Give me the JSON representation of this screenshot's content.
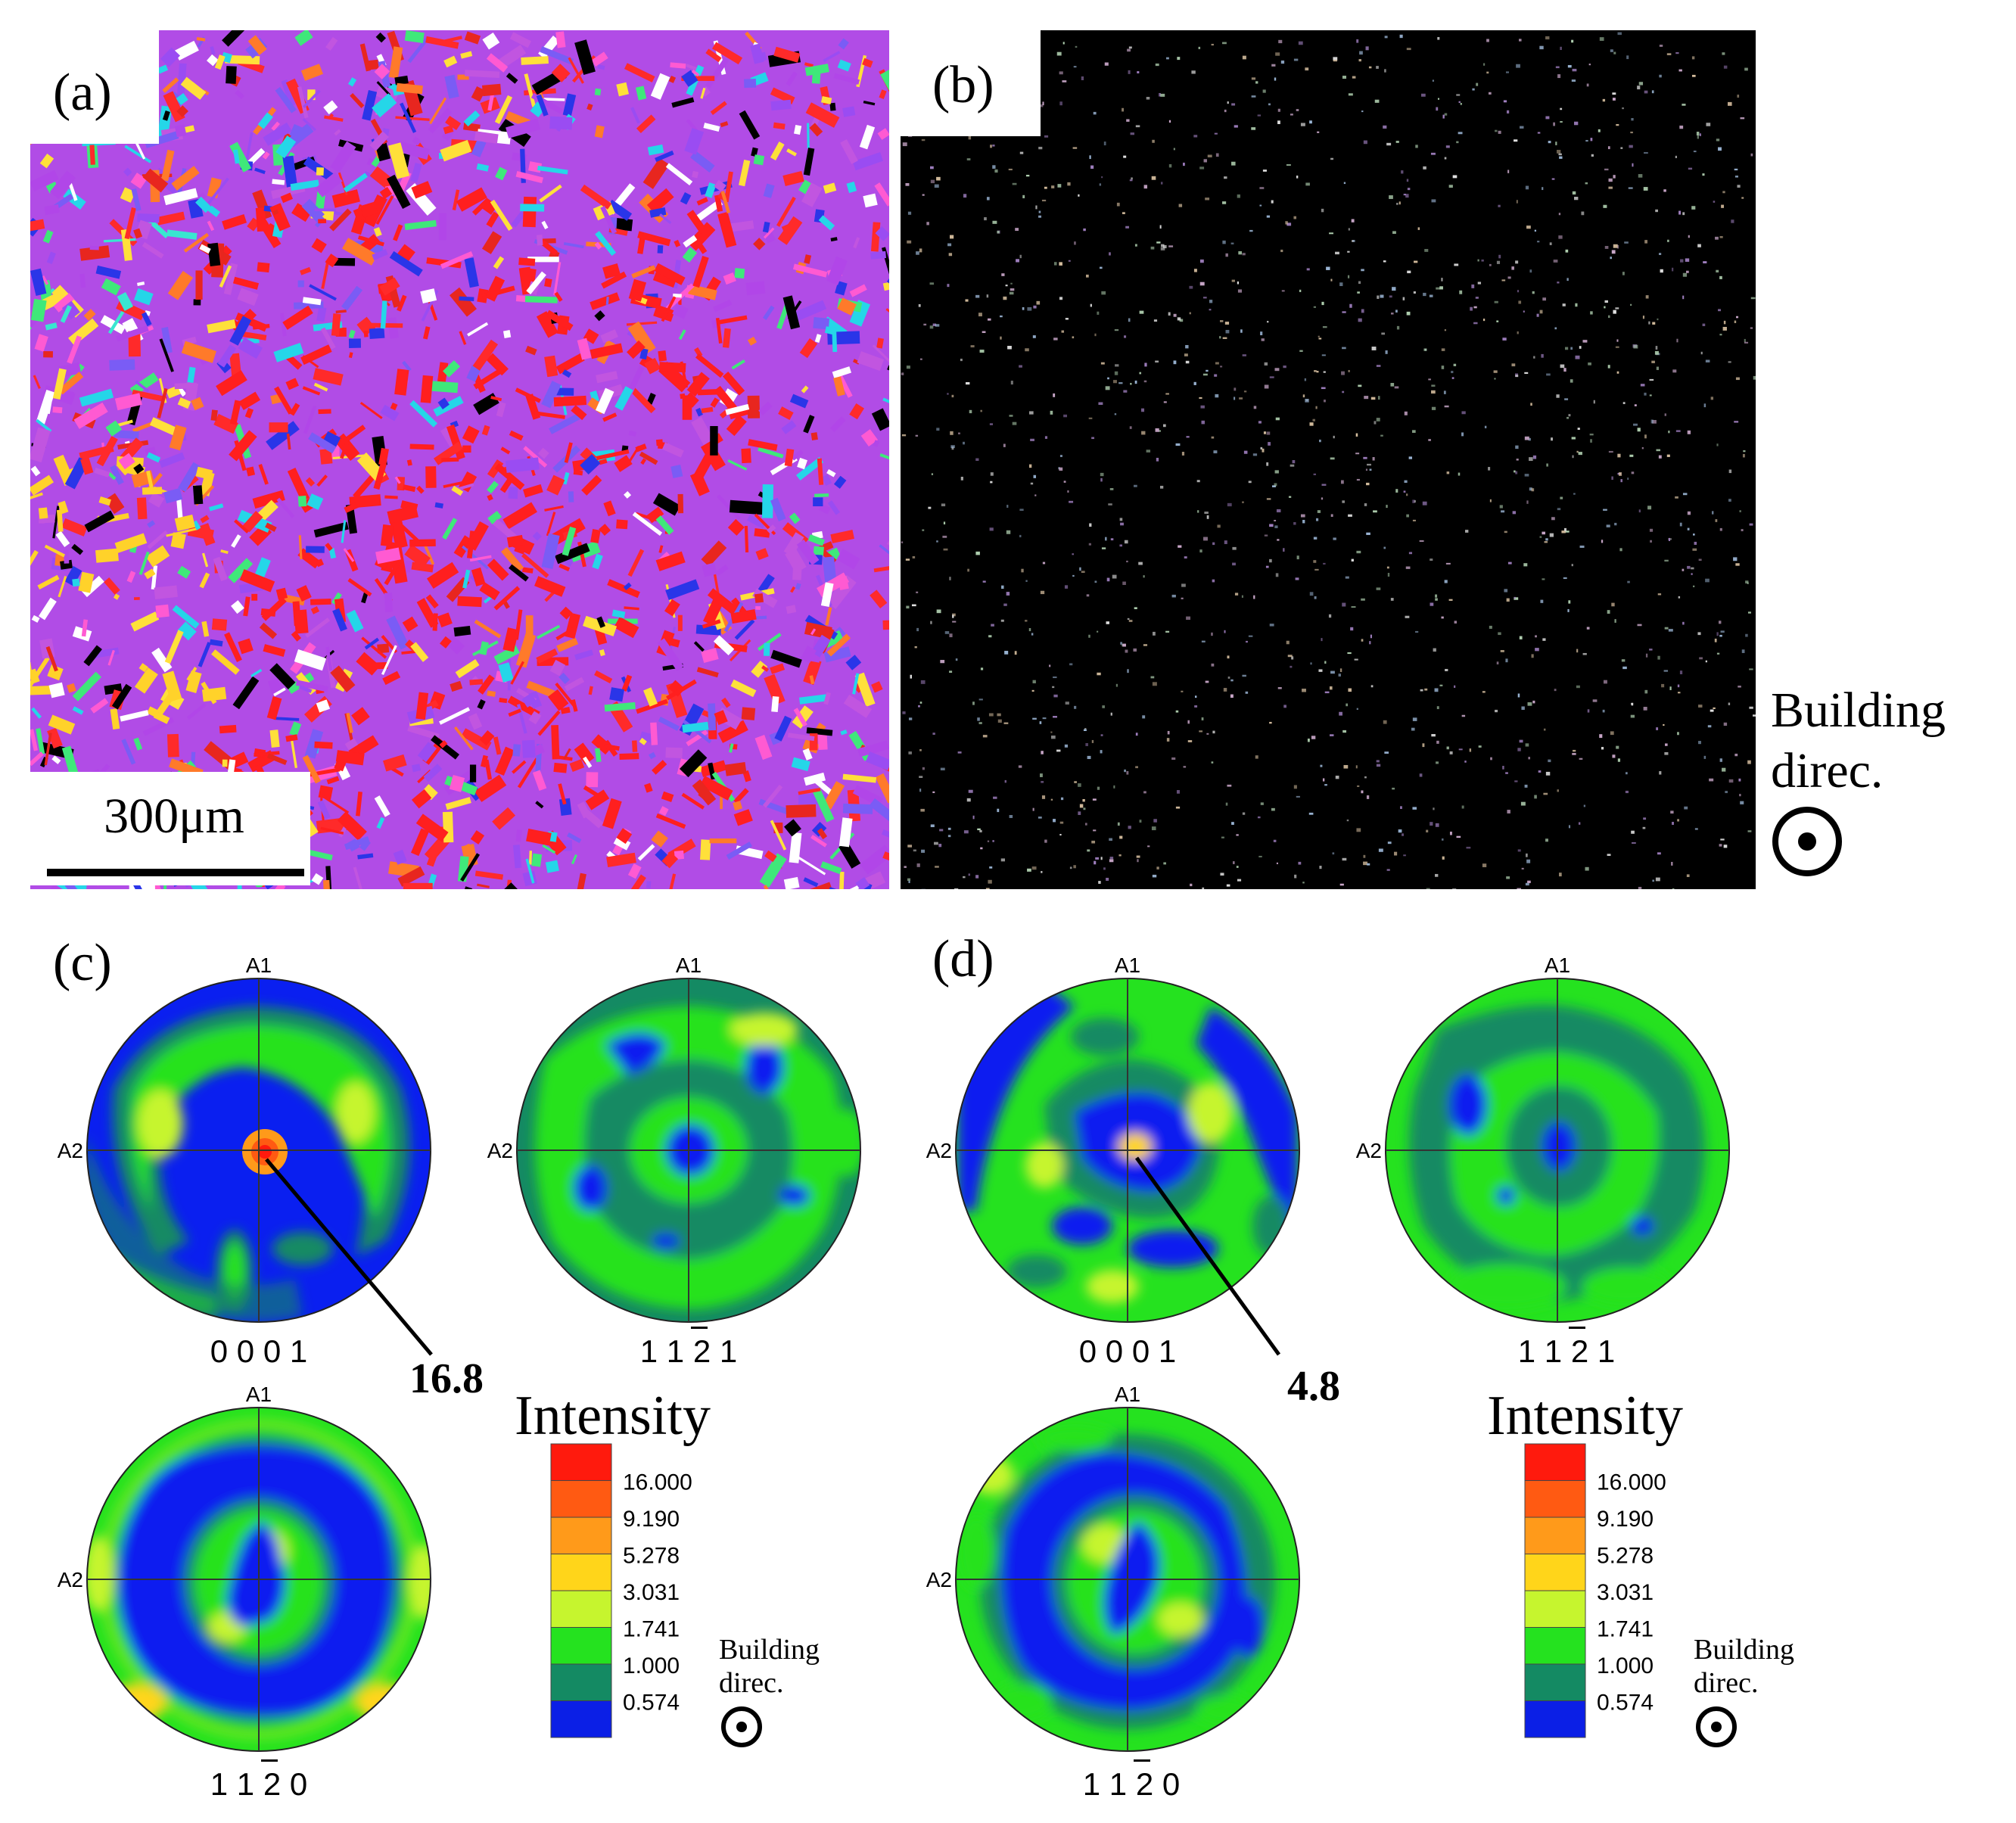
{
  "panel_a": {
    "label": "(a)",
    "scale_bar": "300μm"
  },
  "panel_b": {
    "label": "(b)"
  },
  "building_direction": {
    "line1": "Building",
    "line2": "direc."
  },
  "panel_c": {
    "label": "(c)",
    "callout_value": "16.8"
  },
  "panel_d": {
    "label": "(d)",
    "callout_value": "4.8"
  },
  "pole_figure_axes": {
    "top": "A1",
    "left": "A2"
  },
  "pole_figure_titles": {
    "basal": "0 0 0 1",
    "pyramidal": "1 1 2 1",
    "prismatic": "1 1 2 0",
    "overbarred_index_note": "third index shown with overbar (2̄)"
  },
  "legend": {
    "title": "Intensity",
    "levels": [
      "16.000",
      "9.190",
      "5.278",
      "3.031",
      "1.741",
      "1.000",
      "0.574"
    ],
    "colors": [
      "#ff1a0d",
      "#ff5a12",
      "#ff9a1a",
      "#ffd51a",
      "#c6f52e",
      "#25e21f",
      "#148a63",
      "#0b1fe6"
    ],
    "building_line1": "Building",
    "building_line2": "direc."
  },
  "colors": {
    "pf_blue": "#0a1ff0",
    "pf_teal": "#16876a",
    "pf_green": "#25e21f",
    "pf_yellowgreen": "#c8f531",
    "pf_yellow": "#ffd51a",
    "pf_orange": "#ff8c16",
    "pf_red": "#ff1f10"
  }
}
